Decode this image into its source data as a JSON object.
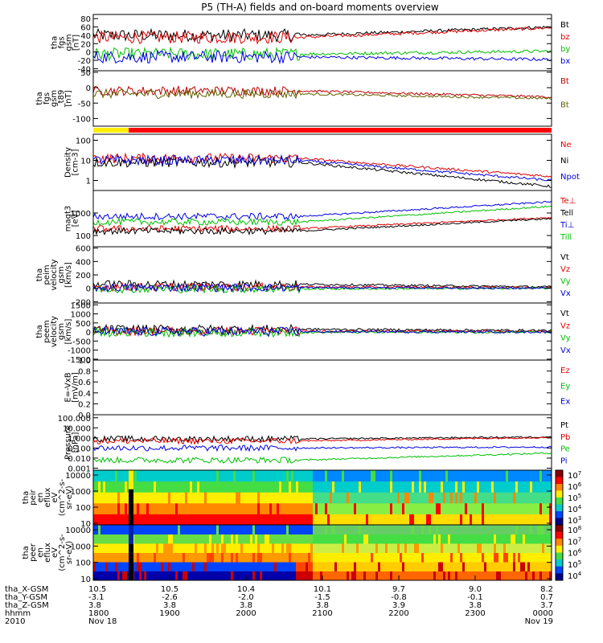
{
  "title": "P5 (TH-A) fields and on-board moments overview",
  "colorbar_ion": [
    "10^7",
    "10^6",
    "10^5",
    "10^4",
    "10^3"
  ],
  "colorbar_elec": [
    "10^8",
    "10^7",
    "10^6",
    "10^5",
    "10^4"
  ],
  "panels": [
    {
      "ylabel": [
        "tha",
        "fgs",
        "gsm",
        "[nT]"
      ],
      "ticks": [
        "80",
        "60",
        "40",
        "20",
        "0",
        "-20",
        "-40"
      ],
      "tick_vals": [
        80,
        60,
        40,
        20,
        0,
        -20,
        -40
      ],
      "ylim": [
        -45,
        90
      ],
      "legend": [
        {
          "name": "Bt",
          "color": "#000000"
        },
        {
          "name": "bz",
          "color": "#e00000"
        },
        {
          "name": "by",
          "color": "#00c000"
        },
        {
          "name": "bx",
          "color": "#0000e0"
        }
      ]
    },
    {
      "ylabel": [
        "tha",
        "fgs",
        "gsm",
        "_t89",
        "[nT]"
      ],
      "ticks": [
        "50",
        "0",
        "-50",
        "-100"
      ],
      "tick_vals": [
        50,
        0,
        -50,
        -100
      ],
      "ylim": [
        -125,
        55
      ],
      "legend": [
        {
          "name": "Bt",
          "color": "#c00000"
        },
        {
          "name": "Bt",
          "color": "#606000"
        }
      ]
    },
    {
      "ylabel": [
        "Density",
        "[cm-3]"
      ],
      "ticks": [
        "100",
        "10",
        "1"
      ],
      "tick_vals": [
        2,
        1,
        0
      ],
      "ylim": [
        -0.5,
        2.3
      ],
      "log": true,
      "legend": [
        {
          "name": "Ne",
          "color": "#e00000"
        },
        {
          "name": "Ni",
          "color": "#000000"
        },
        {
          "name": "Npot",
          "color": "#0000e0"
        }
      ]
    },
    {
      "ylabel": [
        "magt3",
        "[eV]"
      ],
      "ticks": [
        "1000",
        "100"
      ],
      "tick_vals": [
        3,
        2
      ],
      "ylim": [
        1.5,
        4.0
      ],
      "log": true,
      "legend": [
        {
          "name": "Te⊥",
          "color": "#e00000"
        },
        {
          "name": "Tell",
          "color": "#000000"
        },
        {
          "name": "Ti⊥",
          "color": "#0000e0"
        },
        {
          "name": "Till",
          "color": "#00c000"
        }
      ]
    },
    {
      "ylabel": [
        "tha",
        "peim",
        "velocity",
        "gsm",
        "[km/s]"
      ],
      "ticks": [
        "600",
        "400",
        "200",
        "0",
        "-200"
      ],
      "tick_vals": [
        600,
        400,
        200,
        0,
        -200
      ],
      "ylim": [
        -220,
        620
      ],
      "legend": [
        {
          "name": "Vt",
          "color": "#000000"
        },
        {
          "name": "Vz",
          "color": "#e00000"
        },
        {
          "name": "Vy",
          "color": "#00c000"
        },
        {
          "name": "Vx",
          "color": "#0000e0"
        }
      ]
    },
    {
      "ylabel": [
        "tha",
        "peem",
        "velocity",
        "gsm",
        "[km/s]"
      ],
      "ticks": [
        "1500",
        "1000",
        "500",
        "0",
        "-500",
        "-1000",
        "-1500"
      ],
      "tick_vals": [
        1500,
        1000,
        500,
        0,
        -500,
        -1000,
        -1500
      ],
      "ylim": [
        -1550,
        1600
      ],
      "legend": [
        {
          "name": "Vt",
          "color": "#000000"
        },
        {
          "name": "Vz",
          "color": "#e00000"
        },
        {
          "name": "Vy",
          "color": "#00c000"
        },
        {
          "name": "Vx",
          "color": "#0000e0"
        }
      ]
    },
    {
      "ylabel": [
        "E=-VxB",
        "[mV/m]"
      ],
      "ticks": [
        "1.0",
        "0.8",
        "0.6",
        "0.4",
        "0.2",
        "0.0"
      ],
      "tick_vals": [
        1.0,
        0.8,
        0.6,
        0.4,
        0.2,
        0.0
      ],
      "ylim": [
        0,
        1.0
      ],
      "legend": [
        {
          "name": "Ez",
          "color": "#e00000"
        },
        {
          "name": "Ey",
          "color": "#00c000"
        },
        {
          "name": "Ex",
          "color": "#0000e0"
        }
      ]
    },
    {
      "ylabel": [
        "Pressure",
        "[nPa]"
      ],
      "ticks": [
        "100.000",
        "10.000",
        "1.000",
        "0.100",
        "0.010",
        "0.001"
      ],
      "tick_vals": [
        2,
        1,
        0,
        -1,
        -2,
        -3
      ],
      "ylim": [
        -3.2,
        2.3
      ],
      "log": true,
      "legend": [
        {
          "name": "Pt",
          "color": "#000000"
        },
        {
          "name": "Pb",
          "color": "#e00000"
        },
        {
          "name": "Pe",
          "color": "#00c000"
        },
        {
          "name": "Pi",
          "color": "#0000e0"
        }
      ]
    },
    {
      "ylabel": [
        "tha",
        "peir",
        "en",
        "eflux",
        "eV",
        "(cm^2-s-",
        "sr-eV)"
      ],
      "ticks": [
        "10000",
        "1000",
        "100",
        "10"
      ],
      "tick_vals": [
        4,
        3,
        2,
        1
      ],
      "ylim": [
        0.9,
        4.3
      ],
      "log": true,
      "legend": []
    },
    {
      "ylabel": [
        "tha",
        "peer",
        "en",
        "eflux",
        "eV",
        "(cm^2-s-",
        "sr-eV)"
      ],
      "ticks": [
        "10000",
        "1000",
        "100",
        "10"
      ],
      "tick_vals": [
        4,
        3,
        2,
        1
      ],
      "ylim": [
        0.9,
        4.3
      ],
      "log": true,
      "legend": []
    }
  ],
  "xaxis": {
    "row_labels": [
      "tha_X-GSM",
      "tha_Y-GSM",
      "tha_Z-GSM",
      "hhmm",
      "2010"
    ],
    "columns": [
      {
        "vals": [
          "10.5",
          "-3.1",
          "3.8",
          "1800",
          "Nov 18"
        ]
      },
      {
        "vals": [
          "10.5",
          "-2.6",
          "3.8",
          "1900",
          ""
        ]
      },
      {
        "vals": [
          "10.4",
          "-2.0",
          "3.8",
          "2000",
          ""
        ]
      },
      {
        "vals": [
          "10.1",
          "-1.5",
          "3.8",
          "2100",
          ""
        ]
      },
      {
        "vals": [
          "9.7",
          "-0.8",
          "3.9",
          "2200",
          ""
        ]
      },
      {
        "vals": [
          "9.0",
          "-0.1",
          "3.8",
          "2300",
          ""
        ]
      },
      {
        "vals": [
          "8.2",
          "0.7",
          "3.7",
          "0000",
          "Nov 19"
        ]
      }
    ]
  },
  "chart_data": {
    "type": "line",
    "title": "P5 (TH-A) fields and on-board moments overview",
    "x_hhmm": [
      "1800",
      "1900",
      "2000",
      "2100",
      "2200",
      "2300",
      "0000"
    ],
    "series": [
      {
        "panel": "fgs gsm",
        "name": "Bt",
        "values": [
          40,
          45,
          45,
          60,
          55,
          55,
          60
        ]
      },
      {
        "panel": "fgs gsm",
        "name": "bz",
        "values": [
          35,
          40,
          40,
          58,
          52,
          52,
          58
        ]
      },
      {
        "panel": "fgs gsm",
        "name": "by",
        "values": [
          -5,
          -10,
          5,
          5,
          0,
          0,
          0
        ]
      },
      {
        "panel": "fgs gsm",
        "name": "bx",
        "values": [
          -10,
          -15,
          -20,
          -15,
          -18,
          -18,
          -18
        ]
      },
      {
        "panel": "Density",
        "name": "Ne",
        "values": [
          15,
          8,
          5,
          1.5,
          1.5,
          1.5,
          2
        ]
      },
      {
        "panel": "Pressure",
        "name": "Pt",
        "values": [
          1,
          1,
          0.5,
          1,
          1,
          1,
          1
        ]
      }
    ]
  }
}
